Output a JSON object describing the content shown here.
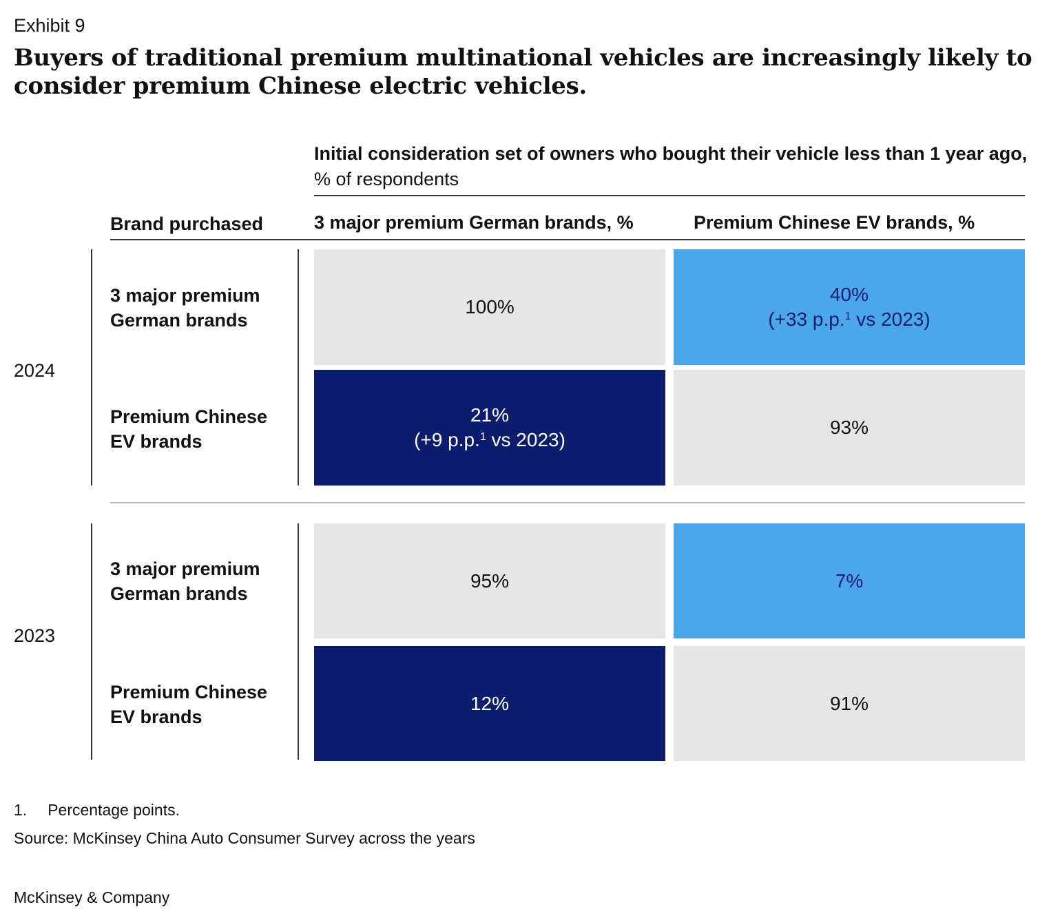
{
  "exhibit": "Exhibit 9",
  "title": "Buyers of traditional premium multinational vehicles are increasingly likely to consider premium Chinese electric vehicles.",
  "colors": {
    "grey": "#e6e6e6",
    "light_blue": "#4ca6ea",
    "dark_blue": "#0d1d6e"
  },
  "chart_data": {
    "type": "table",
    "title": "Initial consideration set of owners who bought their vehicle less than 1 year ago, % of respondents",
    "subtitle_bold": "Initial consideration set of owners who bought their vehicle less than 1 year ago,",
    "subtitle_unit": "% of respondents",
    "row_header": "Brand purchased",
    "columns": [
      "3 major premium German brands, %",
      "Premium Chinese EV brands, %"
    ],
    "groups": [
      {
        "year": "2024",
        "rows": [
          {
            "label": "3 major premium German brands",
            "values": [
              100,
              40
            ],
            "display": [
              "100%",
              "40%"
            ],
            "notes": [
              "",
              "(+33 p.p."
            ],
            "notes_tail": [
              "",
              " vs 2023)"
            ]
          },
          {
            "label": "Premium Chinese EV brands",
            "values": [
              21,
              93
            ],
            "display": [
              "21%",
              "93%"
            ],
            "notes": [
              "(+9 p.p.",
              ""
            ],
            "notes_tail": [
              " vs 2023)",
              ""
            ]
          }
        ]
      },
      {
        "year": "2023",
        "rows": [
          {
            "label": "3 major premium German brands",
            "values": [
              95,
              7
            ],
            "display": [
              "95%",
              "7%"
            ]
          },
          {
            "label": "Premium Chinese EV brands",
            "values": [
              12,
              91
            ],
            "display": [
              "12%",
              "91%"
            ]
          }
        ]
      }
    ]
  },
  "footnote": {
    "marker": "1.",
    "sup": "1",
    "text": "Percentage points."
  },
  "source": "Source: McKinsey China Auto Consumer Survey across the years",
  "brand": "McKinsey & Company"
}
